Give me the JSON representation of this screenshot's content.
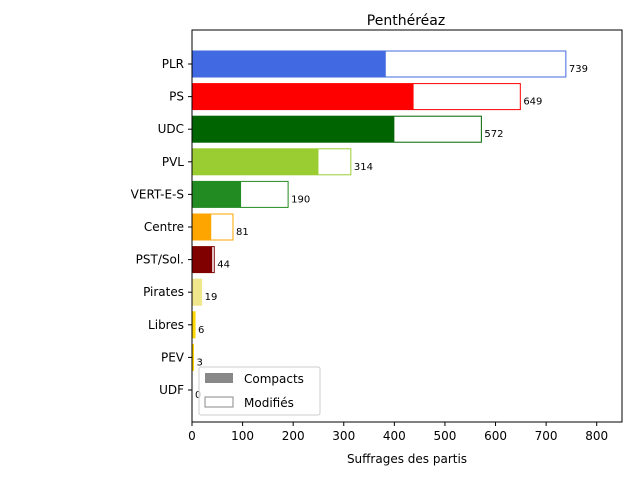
{
  "chart_data": {
    "type": "bar",
    "orientation": "horizontal",
    "title": "Penthéréaz",
    "xlabel": "Suffrages des partis",
    "ylabel": "",
    "xlim": [
      0,
      850
    ],
    "xticks": [
      0,
      100,
      200,
      300,
      400,
      500,
      600,
      700,
      800
    ],
    "grid": false,
    "legend_position": "lower-left",
    "categories": [
      "PLR",
      "PS",
      "UDC",
      "PVL",
      "VERT-E-S",
      "Centre",
      "PST/Sol.",
      "Pirates",
      "Libres",
      "PEV",
      "UDF"
    ],
    "series": [
      {
        "name": "Compacts",
        "values": [
          383,
          438,
          400,
          250,
          97,
          38,
          40,
          19,
          5,
          2,
          0
        ]
      },
      {
        "name": "Modifiés",
        "values": [
          739,
          649,
          572,
          314,
          190,
          81,
          44,
          19,
          6,
          3,
          0
        ]
      }
    ],
    "data_labels": [
      "739",
      "649",
      "572",
      "314",
      "190",
      "81",
      "44",
      "19",
      "6",
      "3",
      "0"
    ],
    "colors": [
      "#4169e1",
      "#ff0000",
      "#006400",
      "#9acd32",
      "#228b22",
      "#ffa500",
      "#800000",
      "#f0e68c",
      "#ffd700",
      "#ffd700",
      "#ffd700"
    ],
    "legend": {
      "compact_label": "Compacts",
      "modified_label": "Modifiés",
      "compact_color": "#888888",
      "modified_color": "#888888"
    }
  }
}
